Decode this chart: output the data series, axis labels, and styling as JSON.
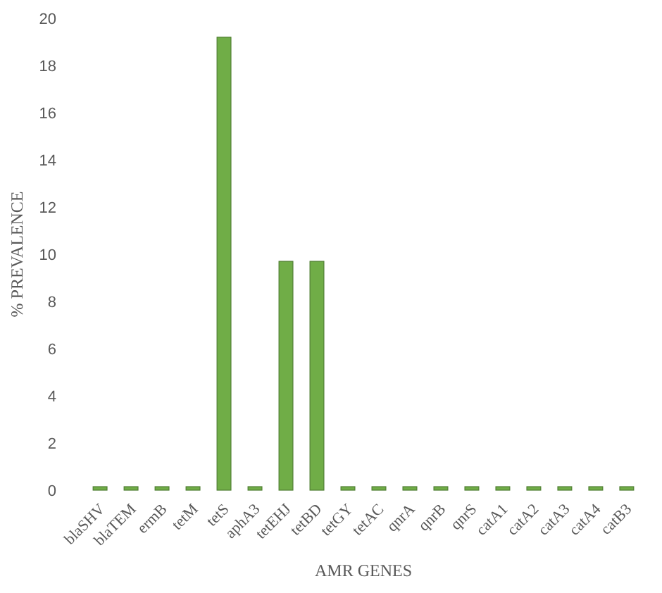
{
  "chart_data": {
    "type": "bar",
    "xlabel": "AMR GENES",
    "ylabel": "% PREVALENCE",
    "categories": [
      "blaSHV",
      "blaTEM",
      "ermB",
      "tetM",
      "tetS",
      "aphA3",
      "tetEHJ",
      "tetBD",
      "tetGY",
      "tetAC",
      "qnrA",
      "qnrB",
      "qnrS",
      "catA1",
      "catA2",
      "catA3",
      "catA4",
      "catB3"
    ],
    "values": [
      0,
      0,
      0,
      0,
      19.2,
      0,
      9.7,
      9.7,
      0,
      0,
      0,
      0,
      0,
      0,
      0,
      0,
      0,
      0
    ],
    "color": "#70ad47",
    "ylim": [
      0,
      20
    ],
    "yticks": [
      0,
      2,
      4,
      6,
      8,
      10,
      12,
      14,
      16,
      18,
      20
    ]
  }
}
